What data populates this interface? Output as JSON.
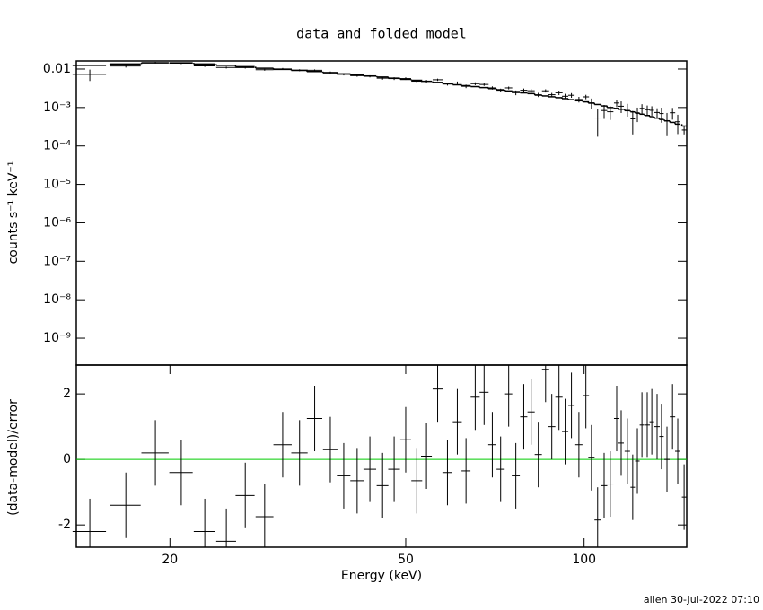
{
  "chart_data": [
    {
      "type": "errorbar",
      "title": "data and folded model",
      "ylabel": "counts s⁻¹ keV⁻¹",
      "xlog": true,
      "ylog": true,
      "xlim": [
        13.9,
        149
      ],
      "ylim": [
        2e-10,
        0.0162
      ],
      "yticks": [
        0.01,
        {
          "value": 0.001,
          "label": "10⁻³"
        },
        {
          "value": 0.0001,
          "label": "10⁻⁴"
        },
        {
          "value": 1e-05,
          "label": "10⁻⁵"
        },
        {
          "value": 1e-06,
          "label": "10⁻⁶"
        },
        {
          "value": 1e-07,
          "label": "10⁻⁷"
        },
        {
          "value": 1e-08,
          "label": "10⁻⁸"
        },
        {
          "value": 1e-09,
          "label": "10⁻⁹"
        }
      ],
      "color": "#000000",
      "x": [
        14.65,
        16.85,
        18.9,
        20.9,
        22.9,
        24.9,
        26.8,
        28.9,
        31.0,
        33.1,
        35.1,
        37.3,
        39.3,
        41.4,
        43.5,
        45.7,
        47.8,
        50.0,
        52.2,
        54.2,
        56.6,
        58.8,
        61.1,
        63.2,
        65.5,
        67.8,
        70.0,
        72.3,
        74.6,
        76.7,
        79.1,
        81.4,
        83.7,
        86.1,
        88.2,
        90.7,
        92.9,
        95.2,
        98.0,
        100.7,
        102.9,
        105.4,
        108.1,
        110.7,
        113.5,
        115.5,
        118.3,
        120.8,
        123.0,
        125.2,
        127.8,
        130.1,
        132.8,
        135.1,
        138.0,
        141.0,
        143.9,
        147.5
      ],
      "xerr": [
        0.95,
        1.0,
        1.0,
        0.95,
        0.96,
        0.96,
        0.99,
        1.0,
        1.1,
        1.05,
        1.05,
        1.05,
        1.03,
        1.09,
        1.07,
        1.04,
        1.09,
        1.05,
        1.1,
        1.14,
        1.09,
        1.13,
        1.07,
        1.1,
        1.15,
        1.19,
        1.1,
        1.14,
        1.04,
        1.2,
        1.1,
        1.14,
        1.17,
        1.2,
        1.23,
        1.27,
        1.14,
        1.17,
        1.37,
        1.23,
        1.26,
        1.29,
        1.32,
        1.36,
        1.19,
        1.21,
        1.24,
        1.06,
        1.08,
        1.1,
        1.34,
        1.14,
        1.39,
        1.18,
        1.45,
        1.48,
        1.51,
        1.29
      ],
      "values": [
        0.00728,
        0.012,
        0.01465,
        0.01421,
        0.01202,
        0.01094,
        0.01087,
        0.00958,
        0.01006,
        0.00931,
        0.00925,
        0.00814,
        0.00728,
        0.00673,
        0.00648,
        0.0058,
        0.00566,
        0.00566,
        0.00483,
        0.00484,
        0.00527,
        0.00407,
        0.00435,
        0.00357,
        0.00417,
        0.00398,
        0.00324,
        0.00281,
        0.00324,
        0.00243,
        0.00281,
        0.00273,
        0.00214,
        0.00272,
        0.00215,
        0.00242,
        0.00196,
        0.00208,
        0.00162,
        0.00189,
        0.00132,
        0.000534,
        0.000836,
        0.000775,
        0.00131,
        0.00108,
        0.000913,
        0.000508,
        0.000706,
        0.000951,
        0.00088,
        0.000847,
        0.000742,
        0.000696,
        0.00045,
        0.00073,
        0.000426,
        0.00026
      ],
      "yerr": [
        0.00238,
        0.00108,
        0.00073,
        0.00073,
        0.00068,
        0.00063,
        0.00058,
        0.00053,
        0.00059,
        0.00055,
        0.00052,
        0.00048,
        0.00045,
        0.00042,
        0.0004,
        0.0005,
        0.00046,
        0.00043,
        0.00041,
        0.00038,
        0.00036,
        0.00034,
        0.00039,
        0.00037,
        0.00035,
        0.00033,
        0.00031,
        0.00029,
        0.00027,
        0.00034,
        0.00031,
        0.0003,
        0.00027,
        0.00026,
        0.00025,
        0.00032,
        0.00031,
        0.00029,
        0.00027,
        0.00025,
        0.00039,
        0.00036,
        0.00033,
        0.0003,
        0.000285,
        0.00036,
        0.000332,
        0.000308,
        0.000288,
        0.000268,
        0.000248,
        0.000232,
        0.000212,
        0.000294,
        0.00027,
        0.000246,
        0.000222,
        6e-05
      ],
      "model": [
        0.0125,
        0.0135,
        0.0145,
        0.0145,
        0.0135,
        0.0125,
        0.0115,
        0.0105,
        0.0098,
        0.0092,
        0.0086,
        0.008,
        0.0075,
        0.007,
        0.0066,
        0.0062,
        0.0058,
        0.0054,
        0.0051,
        0.0048,
        0.0045,
        0.0042,
        0.0039,
        0.0037,
        0.0035,
        0.0033,
        0.0031,
        0.0029,
        0.0027,
        0.0026,
        0.0024,
        0.0023,
        0.0021,
        0.002,
        0.0019,
        0.0018,
        0.0017,
        0.0016,
        0.0015,
        0.0014,
        0.0013,
        0.0012,
        0.0011,
        0.001,
        0.00095,
        0.0009,
        0.00083,
        0.00077,
        0.00072,
        0.00067,
        0.00062,
        0.00058,
        0.00053,
        0.00049,
        0.00045,
        0.00041,
        0.00037,
        0.00033
      ],
      "model_color": "#000000"
    },
    {
      "type": "errorbar",
      "xlabel": "Energy (keV)",
      "ylabel": "(data-model)/error",
      "xlog": true,
      "ylog": false,
      "xlim": [
        13.9,
        149
      ],
      "xticks": [
        20,
        50,
        100
      ],
      "ylim": [
        -2.68,
        2.88
      ],
      "yticks": [
        -2,
        0,
        2
      ],
      "color": "#000000",
      "refline": 0,
      "refline_color": "#00cc00",
      "x": [
        14.65,
        16.85,
        18.9,
        20.9,
        22.9,
        24.9,
        26.8,
        28.9,
        31.0,
        33.1,
        35.1,
        37.3,
        39.3,
        41.4,
        43.5,
        45.7,
        47.8,
        50.0,
        52.2,
        54.2,
        56.6,
        58.8,
        61.1,
        63.2,
        65.5,
        67.8,
        70.0,
        72.3,
        74.6,
        76.7,
        79.1,
        81.4,
        83.7,
        86.1,
        88.2,
        90.7,
        92.9,
        95.2,
        98.0,
        100.7,
        102.9,
        105.4,
        108.1,
        110.7,
        113.5,
        115.5,
        118.3,
        120.8,
        123.0,
        125.2,
        127.8,
        130.1,
        132.8,
        135.1,
        138.0,
        141.0,
        143.9,
        147.5
      ],
      "xerr": [
        0.95,
        1.0,
        1.0,
        0.95,
        0.96,
        0.96,
        0.99,
        1.0,
        1.1,
        1.05,
        1.05,
        1.05,
        1.03,
        1.09,
        1.07,
        1.04,
        1.09,
        1.05,
        1.1,
        1.14,
        1.09,
        1.13,
        1.07,
        1.1,
        1.15,
        1.19,
        1.1,
        1.14,
        1.04,
        1.2,
        1.1,
        1.14,
        1.17,
        1.2,
        1.23,
        1.27,
        1.14,
        1.17,
        1.37,
        1.23,
        1.26,
        1.29,
        1.32,
        1.36,
        1.19,
        1.21,
        1.24,
        1.06,
        1.08,
        1.1,
        1.34,
        1.14,
        1.39,
        1.18,
        1.45,
        1.48,
        1.51,
        1.29
      ],
      "values": [
        -2.2,
        -1.4,
        0.2,
        -0.4,
        -2.2,
        -2.5,
        -1.1,
        -1.75,
        0.45,
        0.2,
        1.25,
        0.3,
        -0.5,
        -0.65,
        -0.3,
        -0.8,
        -0.3,
        0.6,
        -0.65,
        0.1,
        2.15,
        -0.4,
        1.15,
        -0.35,
        1.9,
        2.05,
        0.45,
        -0.3,
        2.0,
        -0.5,
        1.3,
        1.45,
        0.15,
        2.75,
        1.0,
        1.9,
        0.85,
        1.65,
        0.45,
        1.95,
        0.05,
        -1.85,
        -0.8,
        -0.75,
        1.25,
        0.5,
        0.25,
        -0.85,
        -0.05,
        1.05,
        1.05,
        1.15,
        1.0,
        0.7,
        0,
        1.3,
        0.25,
        -1.15
      ],
      "yerr": [
        1,
        1,
        1,
        1,
        1,
        1,
        1,
        1,
        1,
        1,
        1,
        1,
        1,
        1,
        1,
        1,
        1,
        1,
        1,
        1,
        1,
        1,
        1,
        1,
        1,
        1,
        1,
        1,
        1,
        1,
        1,
        1,
        1,
        1,
        1,
        1,
        1,
        1,
        1,
        1,
        1,
        1,
        1,
        1,
        1,
        1,
        1,
        1,
        1,
        1,
        1,
        1,
        1,
        1,
        1,
        1,
        1,
        1
      ]
    }
  ],
  "footer": "allen 30-Jul-2022 07:10"
}
